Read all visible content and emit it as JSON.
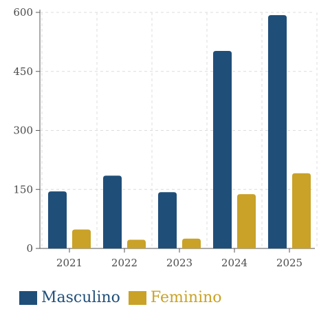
{
  "chart_data": {
    "type": "bar",
    "categories": [
      "2021",
      "2022",
      "2023",
      "2024",
      "2025"
    ],
    "series": [
      {
        "name": "Masculino",
        "color": "#1f4e79",
        "values": [
          145,
          185,
          143,
          502,
          593
        ]
      },
      {
        "name": "Feminino",
        "color": "#c9a227",
        "values": [
          48,
          22,
          25,
          138,
          191
        ]
      }
    ],
    "yticks": [
      "0",
      "150",
      "300",
      "450",
      "600"
    ],
    "ylim": [
      0,
      600
    ],
    "grid": true,
    "legend": "bottom-left"
  }
}
